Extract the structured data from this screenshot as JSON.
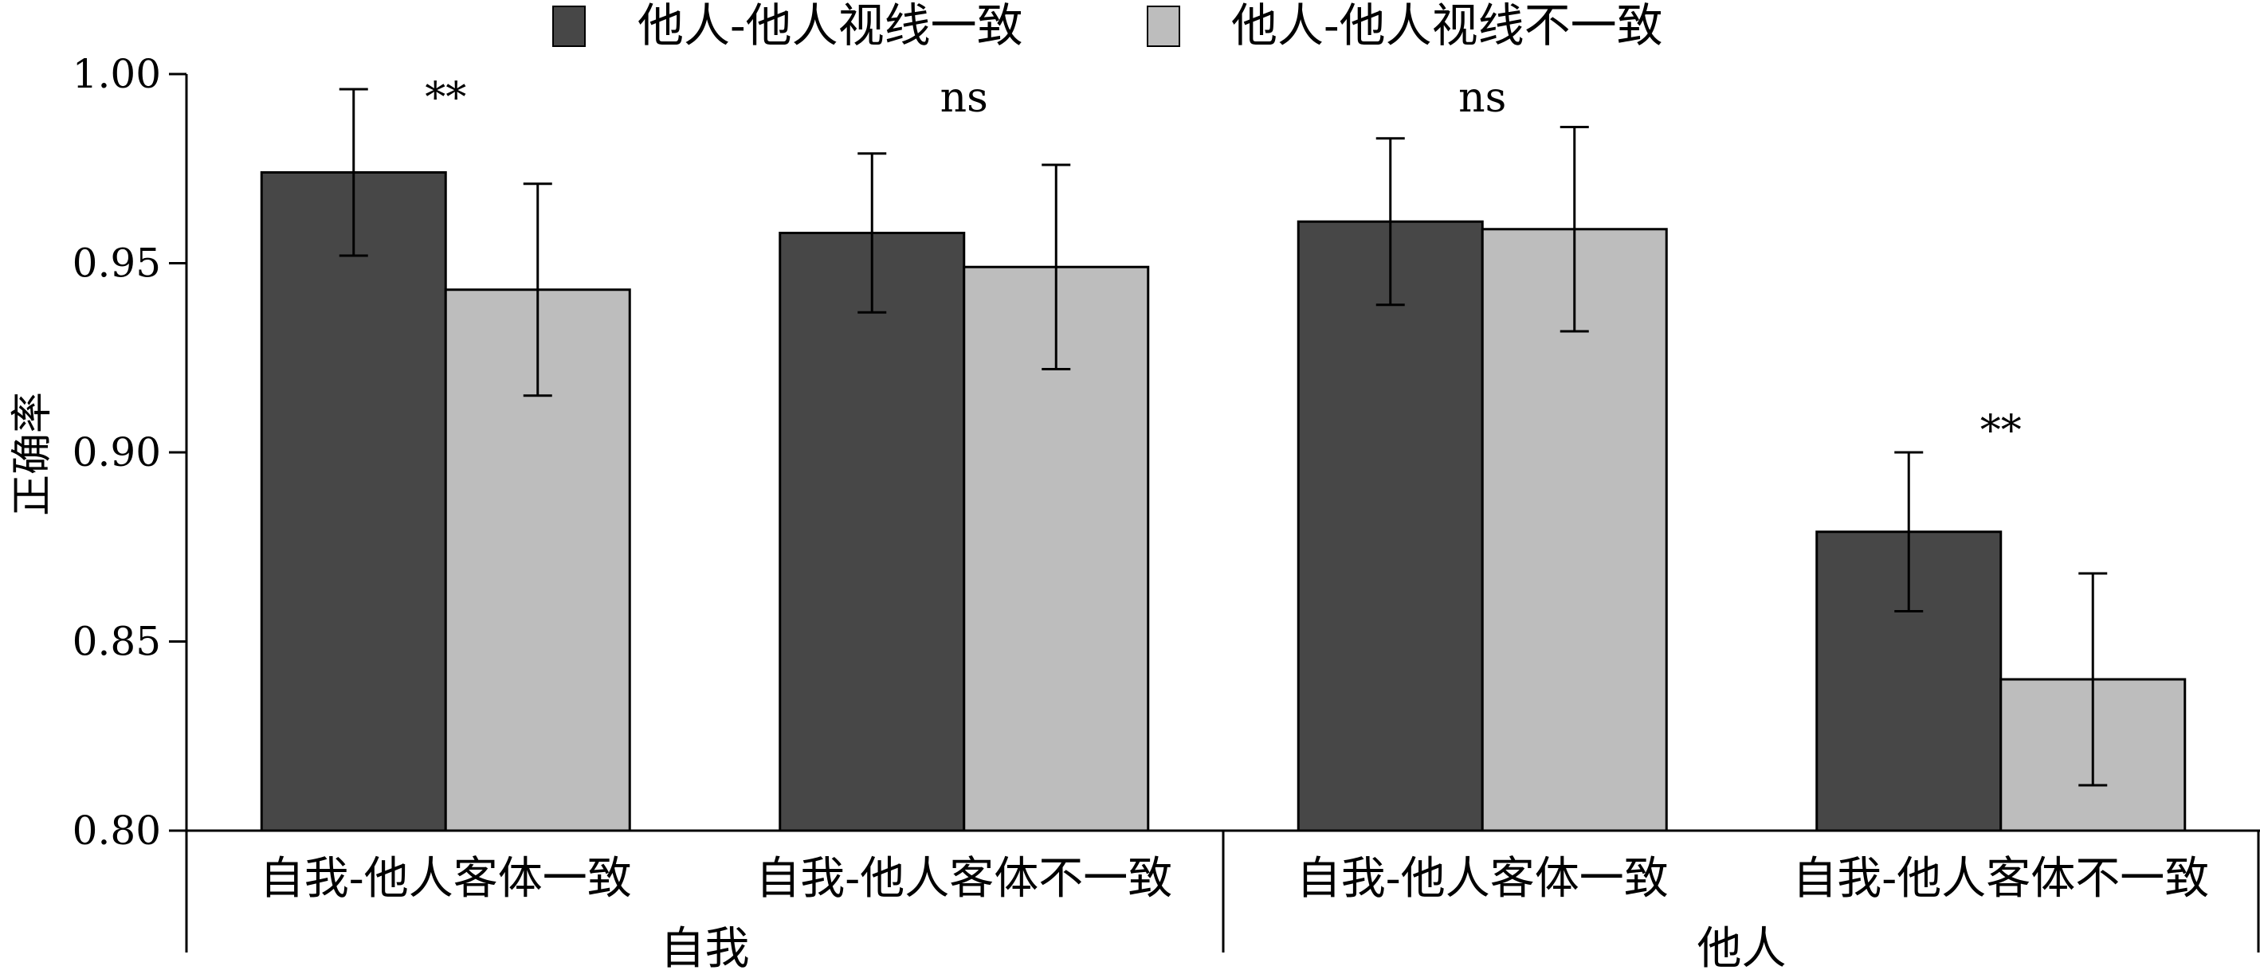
{
  "chart_data": {
    "type": "bar",
    "ylabel": "正确率",
    "xlabel": "",
    "ylim": [
      0.8,
      1.0
    ],
    "yticks": [
      "0.80",
      "0.85",
      "0.90",
      "0.95",
      "1.00"
    ],
    "categories": [
      "自我-他人客体一致",
      "自我-他人客体不一致",
      "自我-他人客体一致",
      "自我-他人客体不一致"
    ],
    "groups": [
      {
        "label": "自我",
        "categories": [
          0,
          1
        ]
      },
      {
        "label": "他人",
        "categories": [
          2,
          3
        ]
      }
    ],
    "series": [
      {
        "name": "他人-他人视线一致",
        "color": "#474747",
        "values": [
          0.974,
          0.958,
          0.961,
          0.879
        ],
        "errors": [
          0.022,
          0.021,
          0.022,
          0.021
        ]
      },
      {
        "name": "他人-他人视线不一致",
        "color": "#bdbdbd",
        "values": [
          0.943,
          0.949,
          0.959,
          0.84
        ],
        "errors": [
          0.028,
          0.027,
          0.027,
          0.028
        ]
      }
    ],
    "annotations": [
      "**",
      "ns",
      "ns",
      "**"
    ],
    "grid": false,
    "legend": "top-center"
  }
}
